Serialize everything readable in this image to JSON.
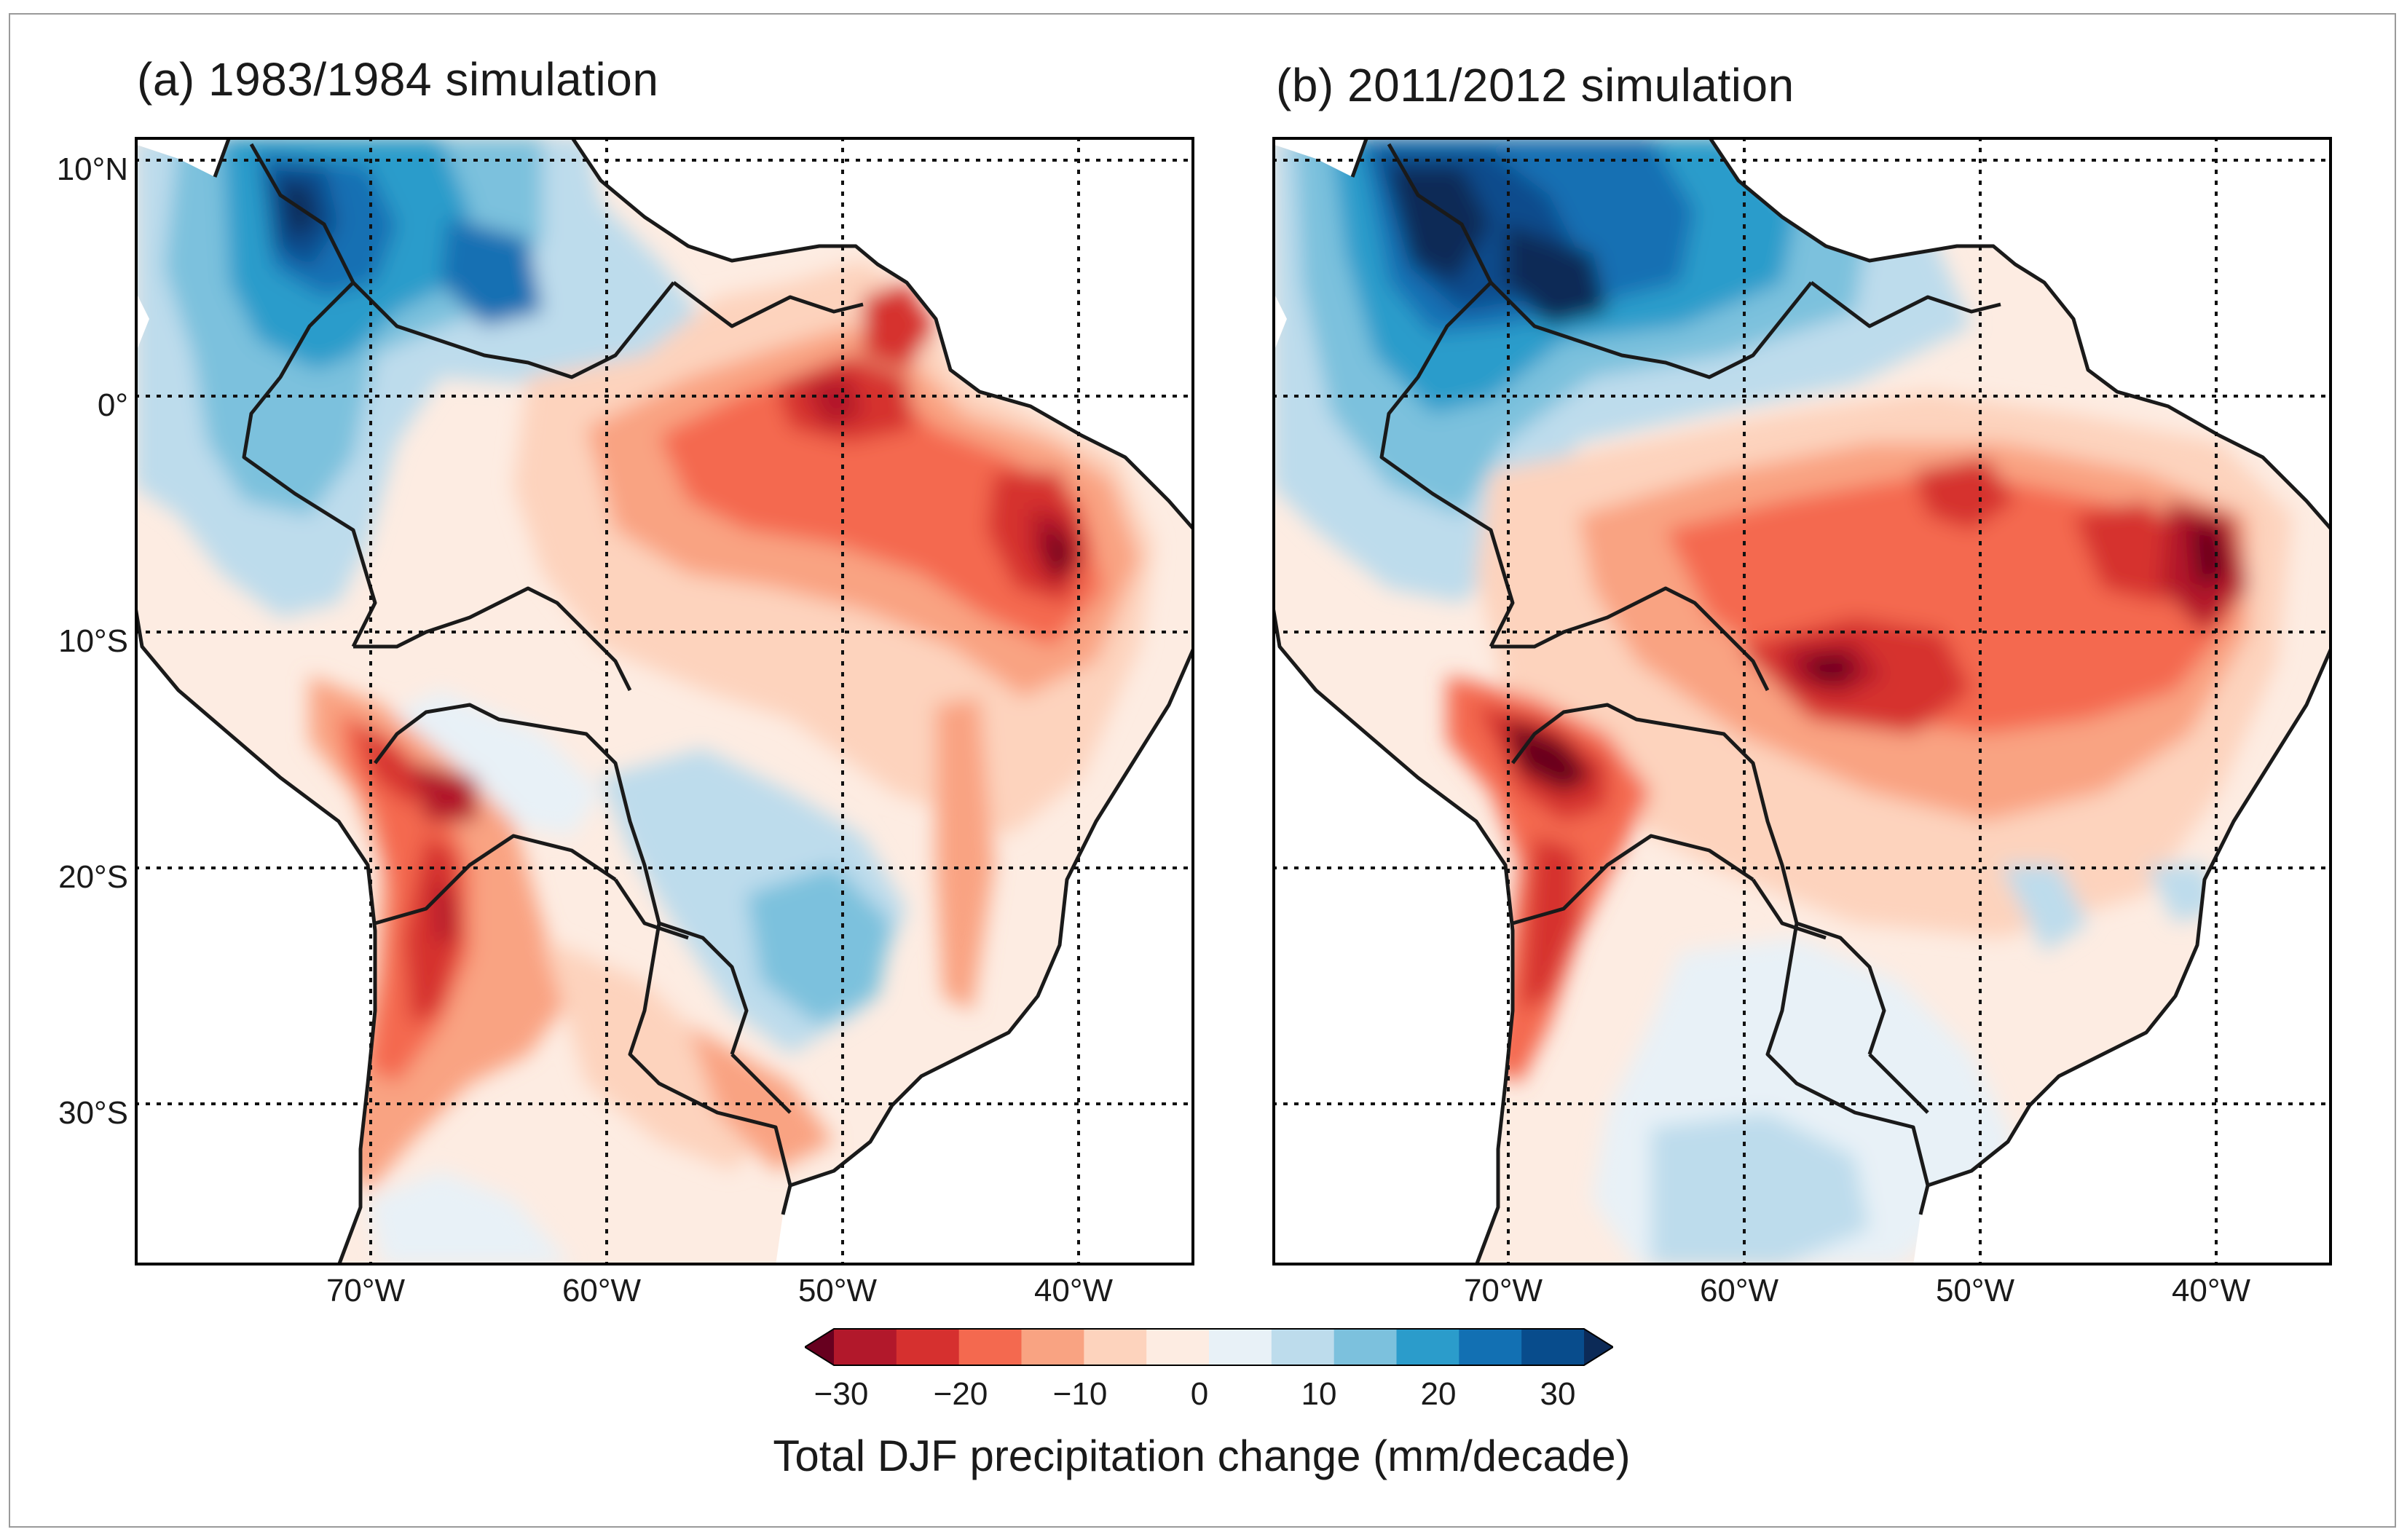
{
  "panels": [
    {
      "title": "(a) 1983/1984 simulation",
      "lat_labels": [
        "10°N",
        "0°",
        "10°S",
        "20°S",
        "30°S"
      ],
      "lon_labels": [
        "70°W",
        "60°W",
        "50°W",
        "40°W"
      ],
      "extent": {
        "lon_min": -80,
        "lon_max": -35,
        "lat_min": -37,
        "lat_max": 11
      }
    },
    {
      "title": "(b) 2011/2012 simulation",
      "lon_labels": [
        "70°W",
        "60°W",
        "50°W",
        "40°W"
      ],
      "extent": {
        "lon_min": -80,
        "lon_max": -35,
        "lat_min": -37,
        "lat_max": 11
      }
    }
  ],
  "gridlines": {
    "lons": [
      -70,
      -60,
      -50,
      -40
    ],
    "lats": [
      10,
      0,
      -10,
      -20,
      -30
    ]
  },
  "colorbar": {
    "label": "Total DJF precipitation change (mm/decade)",
    "ticks": [
      "−30",
      "−20",
      "−10",
      "0",
      "10",
      "20",
      "30"
    ],
    "levels": [
      -30,
      -25,
      -20,
      -15,
      -10,
      -5,
      0,
      5,
      10,
      15,
      20,
      25,
      30
    ],
    "colors": [
      "#b2182b",
      "#d6302f",
      "#f4694f",
      "#f9a382",
      "#fdd3bd",
      "#fdece2",
      "#e8f1f7",
      "#bddcec",
      "#7cc1dd",
      "#2b9ccb",
      "#1270b3",
      "#084c8c"
    ],
    "under_color": "#67001f",
    "over_color": "#0c2a57"
  }
}
